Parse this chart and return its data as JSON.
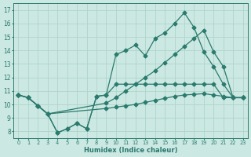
{
  "xlabel": "Humidex (Indice chaleur)",
  "xlim": [
    -0.5,
    23.5
  ],
  "ylim": [
    7.5,
    17.5
  ],
  "xticks": [
    0,
    1,
    2,
    3,
    4,
    5,
    6,
    7,
    8,
    9,
    10,
    11,
    12,
    13,
    14,
    15,
    16,
    17,
    18,
    19,
    20,
    21,
    22,
    23
  ],
  "yticks": [
    8,
    9,
    10,
    11,
    12,
    13,
    14,
    15,
    16,
    17
  ],
  "bg_color": "#cce8e2",
  "grid_color": "#afd4cc",
  "line_color": "#2a7a6e",
  "line1_x": [
    0,
    1,
    2,
    3,
    4,
    5,
    6,
    7,
    8,
    9,
    10,
    11,
    12,
    13,
    14,
    15,
    16,
    17,
    18,
    19,
    20,
    21,
    22,
    23
  ],
  "line1_y": [
    10.7,
    10.5,
    9.9,
    9.3,
    7.9,
    8.2,
    8.6,
    8.2,
    10.6,
    10.7,
    13.7,
    14.0,
    14.4,
    13.6,
    14.9,
    15.3,
    16.0,
    16.8,
    15.7,
    13.9,
    12.8,
    11.5,
    10.5,
    10.5
  ],
  "line2_x": [
    0,
    1,
    2,
    3,
    4,
    5,
    6,
    7,
    8,
    9,
    10,
    11,
    12,
    13,
    14,
    15,
    16,
    17,
    18,
    19,
    20,
    21,
    22,
    23
  ],
  "line2_y": [
    10.7,
    10.5,
    9.9,
    9.3,
    7.9,
    8.2,
    8.6,
    8.2,
    10.6,
    10.7,
    11.5,
    11.5,
    11.5,
    11.5,
    11.5,
    11.5,
    11.5,
    11.5,
    11.5,
    11.5,
    11.5,
    10.5,
    10.5,
    10.5
  ],
  "line3_x": [
    0,
    1,
    2,
    3,
    9,
    10,
    11,
    12,
    13,
    14,
    15,
    16,
    17,
    18,
    19,
    20,
    21,
    22,
    23
  ],
  "line3_y": [
    10.7,
    10.5,
    9.9,
    9.3,
    10.1,
    10.5,
    11.0,
    11.5,
    12.0,
    12.5,
    13.1,
    13.7,
    14.3,
    14.9,
    15.5,
    13.9,
    12.8,
    10.5,
    10.5
  ],
  "line4_x": [
    0,
    1,
    2,
    3,
    9,
    10,
    11,
    12,
    13,
    14,
    15,
    16,
    17,
    18,
    19,
    20,
    21,
    22,
    23
  ],
  "line4_y": [
    10.7,
    10.5,
    9.9,
    9.3,
    9.7,
    9.8,
    9.9,
    10.0,
    10.15,
    10.3,
    10.45,
    10.6,
    10.7,
    10.75,
    10.8,
    10.7,
    10.6,
    10.5,
    10.5
  ]
}
